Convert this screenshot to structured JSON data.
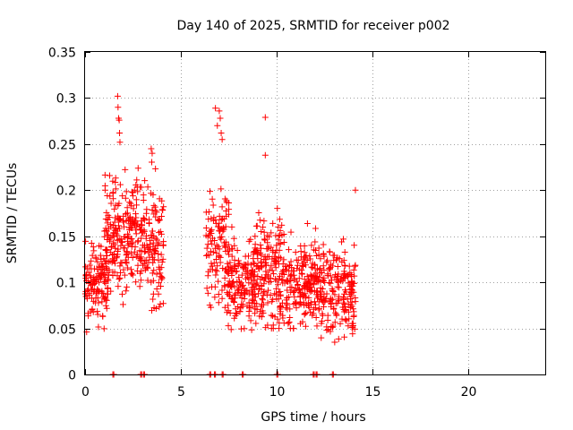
{
  "chart_data": {
    "type": "scatter",
    "title": "Day 140 of 2025, SRMTID for receiver p002",
    "xlabel": "GPS time / hours",
    "ylabel": "SRMTID / TECUs",
    "xlim": [
      0,
      24
    ],
    "ylim": [
      0,
      0.35
    ],
    "xticks": [
      0,
      5,
      10,
      15,
      20
    ],
    "xtick_labels": [
      "0",
      "5",
      "10",
      "15",
      "20"
    ],
    "yticks": [
      0,
      0.05,
      0.1,
      0.15,
      0.2,
      0.25,
      0.3,
      0.35
    ],
    "ytick_labels": [
      "0",
      "0.05",
      "0.1",
      "0.15",
      "0.2",
      "0.25",
      "0.3",
      "0.35"
    ],
    "grid": true,
    "series": [
      {
        "name": "SRMTID",
        "color": "#ff0000",
        "marker": "plus",
        "clusters": [
          {
            "x_start": 0.0,
            "x_end": 1.2,
            "n": 120,
            "y_min": 0.045,
            "y_max": 0.16,
            "y_center": 0.1,
            "seed": 11
          },
          {
            "x_start": 1.0,
            "x_end": 2.1,
            "n": 130,
            "y_min": 0.05,
            "y_max": 0.24,
            "y_center": 0.15,
            "seed": 23
          },
          {
            "x_start": 2.1,
            "x_end": 3.3,
            "n": 140,
            "y_min": 0.07,
            "y_max": 0.23,
            "y_center": 0.15,
            "seed": 37
          },
          {
            "x_start": 3.3,
            "x_end": 4.1,
            "n": 90,
            "y_min": 0.05,
            "y_max": 0.24,
            "y_center": 0.14,
            "seed": 41
          },
          {
            "x_start": 6.3,
            "x_end": 7.5,
            "n": 110,
            "y_min": 0.05,
            "y_max": 0.24,
            "y_center": 0.14,
            "seed": 53
          },
          {
            "x_start": 7.4,
            "x_end": 8.9,
            "n": 150,
            "y_min": 0.03,
            "y_max": 0.16,
            "y_center": 0.1,
            "seed": 67
          },
          {
            "x_start": 8.7,
            "x_end": 10.5,
            "n": 200,
            "y_min": 0.05,
            "y_max": 0.2,
            "y_center": 0.11,
            "seed": 79
          },
          {
            "x_start": 10.5,
            "x_end": 12.3,
            "n": 200,
            "y_min": 0.05,
            "y_max": 0.17,
            "y_center": 0.1,
            "seed": 83
          },
          {
            "x_start": 12.3,
            "x_end": 14.1,
            "n": 190,
            "y_min": 0.035,
            "y_max": 0.16,
            "y_center": 0.09,
            "seed": 97
          }
        ],
        "outliers": [
          {
            "x": 1.7,
            "y": 0.302
          },
          {
            "x": 1.72,
            "y": 0.29
          },
          {
            "x": 1.75,
            "y": 0.278
          },
          {
            "x": 1.78,
            "y": 0.276
          },
          {
            "x": 1.8,
            "y": 0.262
          },
          {
            "x": 1.82,
            "y": 0.252
          },
          {
            "x": 6.8,
            "x2": 0,
            "y": 0.289
          },
          {
            "x": 7.0,
            "y": 0.286
          },
          {
            "x": 7.05,
            "y": 0.278
          },
          {
            "x": 6.9,
            "y": 0.27
          },
          {
            "x": 7.1,
            "y": 0.262
          },
          {
            "x": 7.15,
            "y": 0.255
          },
          {
            "x": 9.4,
            "y": 0.279
          },
          {
            "x": 9.4,
            "y": 0.238
          },
          {
            "x": 14.1,
            "y": 0.2
          },
          {
            "x": 3.45,
            "y": 0.245
          },
          {
            "x": 3.5,
            "y": 0.24
          }
        ],
        "zero_marks": [
          1.45,
          2.9,
          3.05,
          6.5,
          6.75,
          7.15,
          8.2,
          10.0,
          11.9,
          12.05,
          12.9
        ]
      }
    ]
  }
}
